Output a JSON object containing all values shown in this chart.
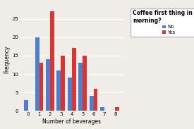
{
  "categories": [
    0,
    1,
    2,
    3,
    4,
    5,
    6,
    7,
    8
  ],
  "no_values": [
    3,
    20,
    14,
    11,
    9,
    13,
    4,
    1,
    0
  ],
  "yes_values": [
    0,
    13,
    27,
    15,
    17,
    15,
    6,
    0,
    1
  ],
  "bar_color_no": "#4f7fc9",
  "bar_color_yes": "#d93535",
  "xlabel": "Number of beverages",
  "ylabel": "Frequency",
  "legend_title": "Coffee first thing in the\nmorning?",
  "legend_no": "No",
  "legend_yes": "Yes",
  "ylim": [
    0,
    28
  ],
  "yticks": [
    0,
    5,
    10,
    15,
    20,
    25
  ],
  "background_color": "#f0ede8",
  "plot_bg_color": "#f0ede8",
  "grid_color": "#ffffff",
  "axis_fontsize": 5.5,
  "tick_fontsize": 5.0,
  "legend_title_fontsize": 5.5,
  "legend_fontsize": 5.0,
  "bar_width": 0.38
}
